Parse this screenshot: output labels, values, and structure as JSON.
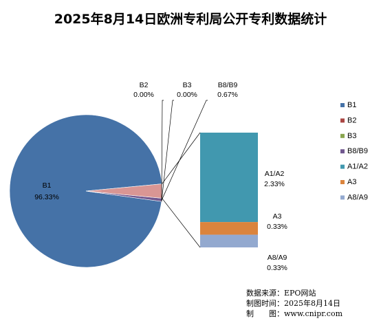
{
  "chart_data": {
    "type": "pie",
    "title": "2025年8月14日欧洲专利局公开专利数据统计",
    "slices": [
      {
        "name": "B1",
        "percent": 96.33,
        "label": "96.33%",
        "color": "#4572A7"
      },
      {
        "name": "B2",
        "percent": 0.0,
        "label": "0.00%",
        "color": "#AA4643"
      },
      {
        "name": "B3",
        "percent": 0.0,
        "label": "0.00%",
        "color": "#89A54E"
      },
      {
        "name": "B8/B9",
        "percent": 0.67,
        "label": "0.67%",
        "color": "#71588F"
      },
      {
        "name": "A1/A2",
        "percent": 2.33,
        "label": "2.33%",
        "color": "#4198AF"
      },
      {
        "name": "A3",
        "percent": 0.33,
        "label": "0.33%",
        "color": "#DB843D"
      },
      {
        "name": "A8/A9",
        "percent": 0.33,
        "label": "0.33%",
        "color": "#93A9CF"
      }
    ],
    "other_slice_color": "#D99694",
    "breakout_series": [
      "A1/A2",
      "A3",
      "A8/A9"
    ],
    "legend_position": "right"
  },
  "source": {
    "line1": "数据来源：EPO网站",
    "line2": "制图时间：2025年8月14日",
    "line3": "制　　图：www.cnipr.com"
  }
}
